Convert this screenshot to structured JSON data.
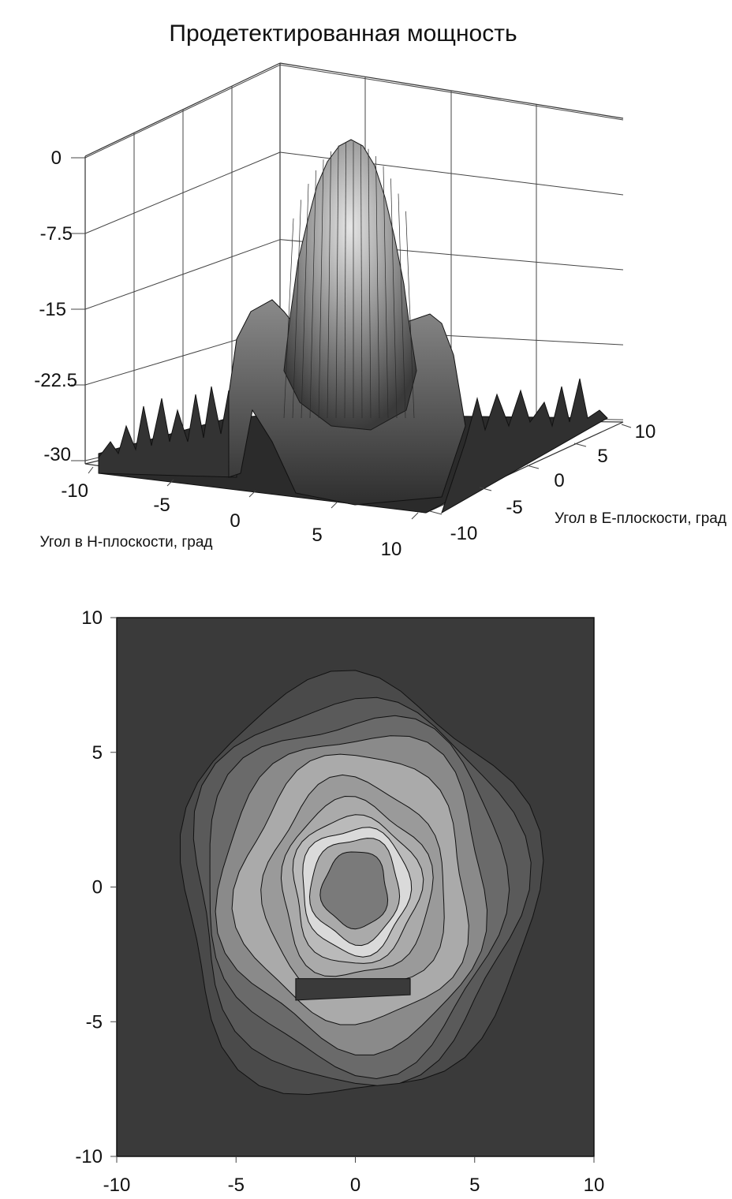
{
  "chart_data": [
    {
      "type": "surface",
      "title": "Продетектированная мощность",
      "xlabel": "Угол в Н-плоскости, град",
      "ylabel": "Угол в Е-плоскости, град",
      "zlabel": "",
      "x_range": [
        -10,
        10
      ],
      "y_range": [
        -10,
        10
      ],
      "zlim": [
        -30,
        0
      ],
      "z_ticks": [
        "0",
        "-7.5",
        "-15",
        "-22.5",
        "-30"
      ],
      "x_ticks": [
        "-10",
        "-5",
        "0",
        "5",
        "10"
      ],
      "y_ticks": [
        "-10",
        "-5",
        "0",
        "5",
        "10"
      ],
      "peak": {
        "x": 0,
        "y": 0,
        "z": 0
      },
      "ring": {
        "radius_deg": 4,
        "level_db": -15
      },
      "noise_floor_db": -30,
      "grid": true,
      "colors": {
        "surface_high": "#e0e0e0",
        "surface_low": "#202020",
        "mesh": "#1a1a1a"
      }
    },
    {
      "type": "contour",
      "title": "",
      "xlabel": "",
      "ylabel": "",
      "xlim": [
        -10,
        10
      ],
      "ylim": [
        -10,
        10
      ],
      "x_ticks": [
        "-10",
        "-5",
        "0",
        "5",
        "10"
      ],
      "y_ticks": [
        "10",
        "5",
        "0",
        "-5",
        "-10"
      ],
      "center": {
        "x": 0,
        "y": 0.5
      },
      "levels_db": [
        -30,
        -27,
        -24,
        -21,
        -18,
        -15,
        -12,
        -9,
        -6,
        -3,
        0
      ],
      "colors": {
        "background": "#3a3a3a",
        "lightest": "#dadada",
        "line": "#111111"
      }
    }
  ]
}
